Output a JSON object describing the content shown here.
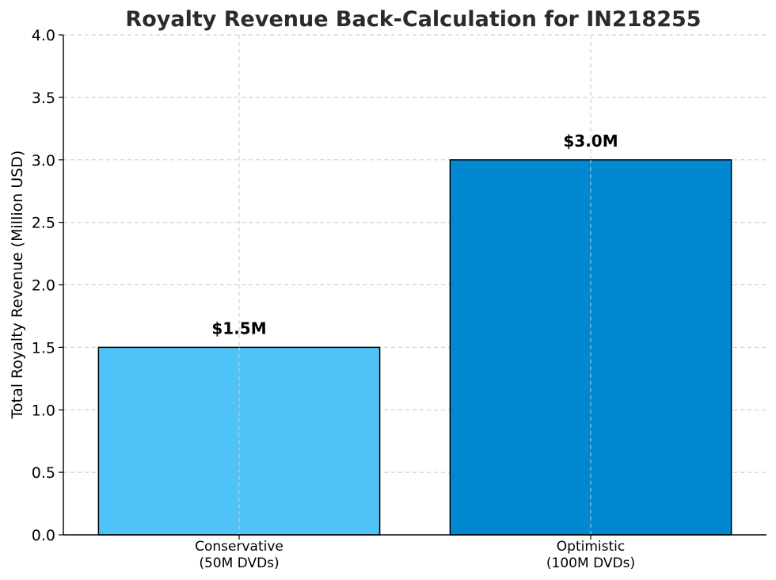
{
  "chart_data": {
    "type": "bar",
    "title": "Royalty Revenue Back-Calculation for IN218255",
    "xlabel": "",
    "ylabel": "Total Royalty Revenue (Million USD)",
    "categories": [
      [
        "Conservative",
        "(50M DVDs)"
      ],
      [
        "Optimistic",
        "(100M DVDs)"
      ]
    ],
    "values": [
      1.5,
      3.0
    ],
    "data_labels": [
      "$1.5M",
      "$3.0M"
    ],
    "bar_colors": [
      "#4fc3f7",
      "#0288d1"
    ],
    "ylim": [
      0,
      4.0
    ],
    "yticks": [
      0.0,
      0.5,
      1.0,
      1.5,
      2.0,
      2.5,
      3.0,
      3.5,
      4.0
    ],
    "ytick_labels": [
      "0.0",
      "0.5",
      "1.0",
      "1.5",
      "2.0",
      "2.5",
      "3.0",
      "3.5",
      "4.0"
    ],
    "grid": true,
    "legend": "none"
  }
}
